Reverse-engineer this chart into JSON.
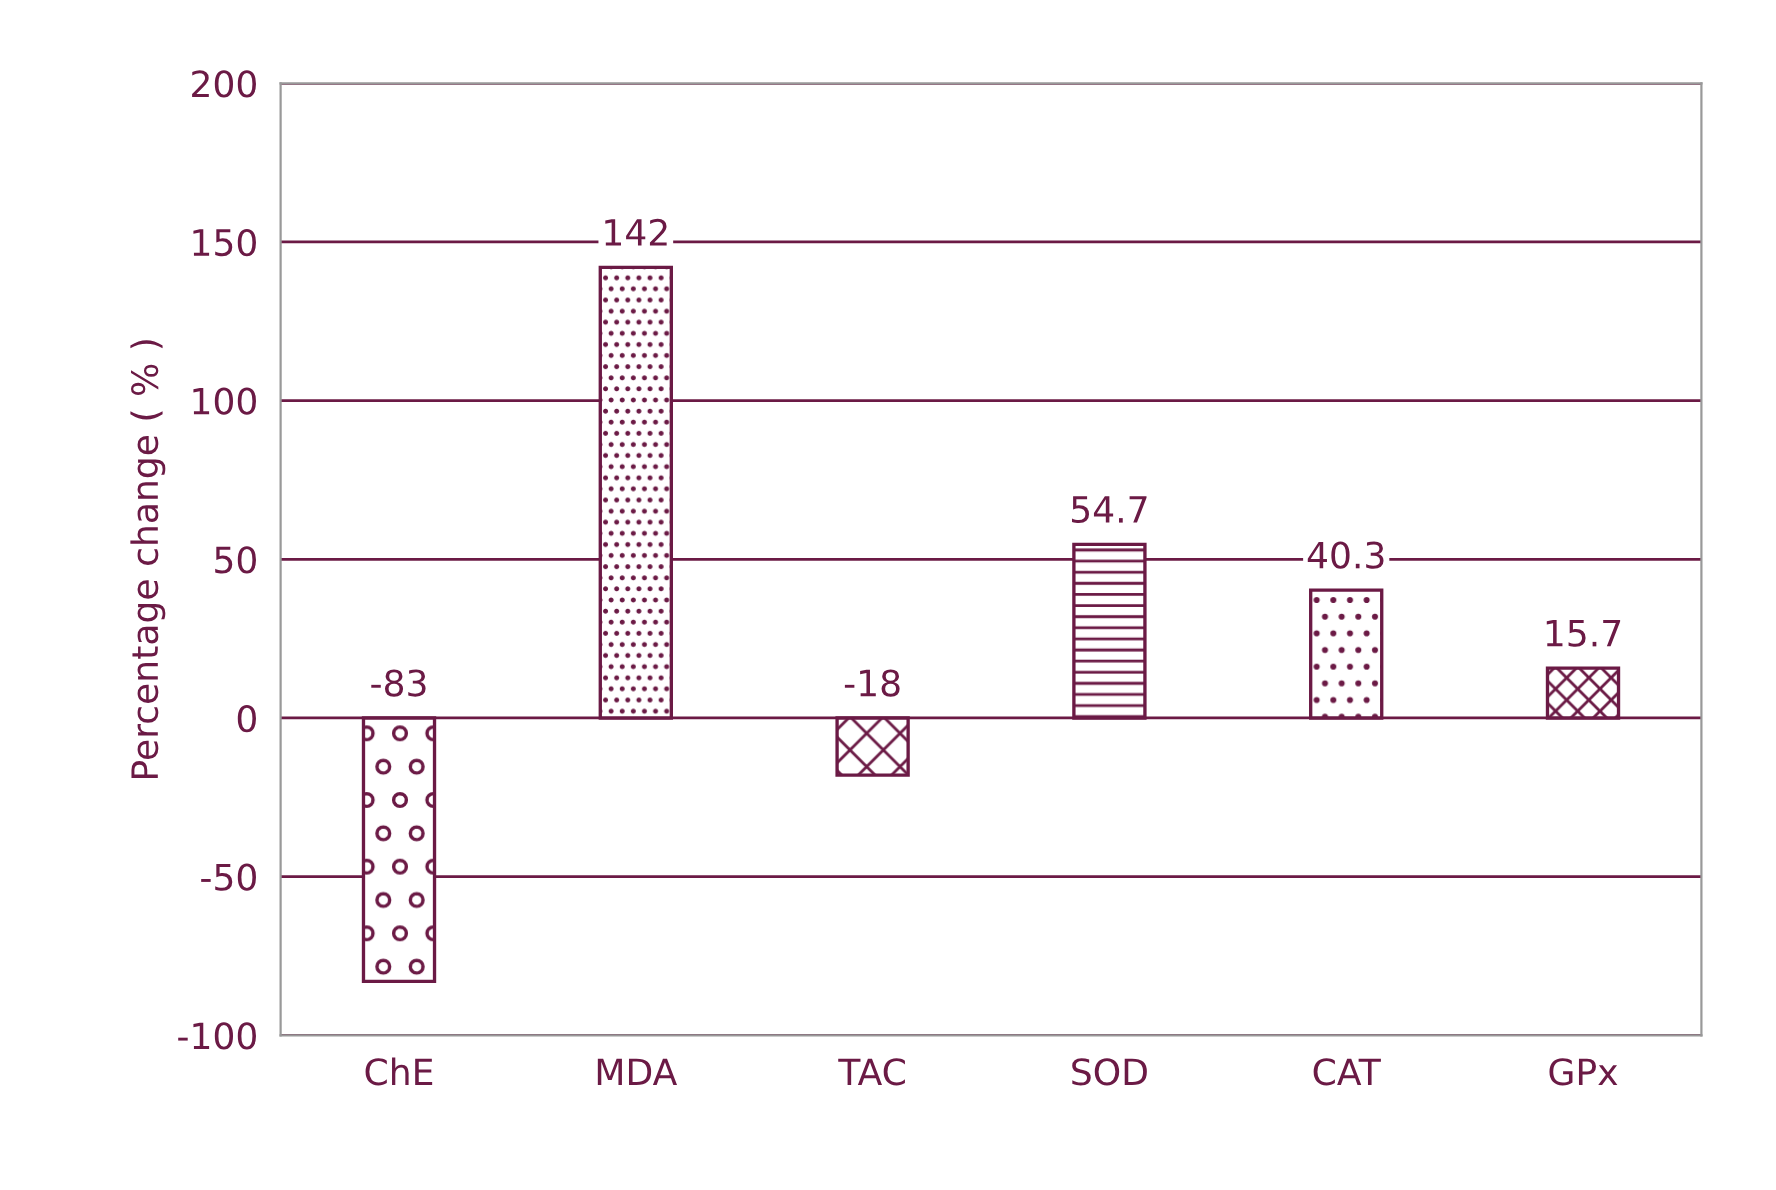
{
  "chart_data": {
    "type": "bar",
    "ylabel": "Percentage change ( % )",
    "categories": [
      "ChE",
      "MDA",
      "TAC",
      "SOD",
      "CAT",
      "GPx"
    ],
    "values": [
      -83,
      142,
      -18,
      54.7,
      40.3,
      15.7
    ],
    "color": "#6b1a45",
    "ylim": [
      -100,
      200
    ],
    "yticks": [
      -100,
      -50,
      0,
      50,
      100,
      150,
      200
    ],
    "grid": "y",
    "data_labels": true
  }
}
